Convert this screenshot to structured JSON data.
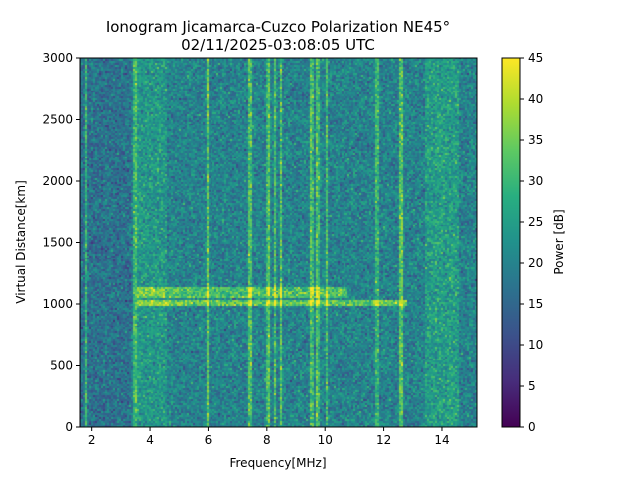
{
  "chart_data": {
    "type": "heatmap",
    "title": "Ionogram Jicamarca-Cuzco Polarization NE45°",
    "subtitle": "02/11/2025-03:08:05 UTC",
    "xlabel": "Frequency[MHz]",
    "ylabel": "Virtual Distance[km]",
    "xlim": [
      1.6,
      15.2
    ],
    "ylim": [
      0,
      3000
    ],
    "xticks": [
      "2",
      "4",
      "6",
      "8",
      "10",
      "12",
      "14"
    ],
    "yticks": [
      "0",
      "500",
      "1000",
      "1500",
      "2000",
      "2500",
      "3000"
    ],
    "colorbar": {
      "label": "Power [dB]",
      "range": [
        0,
        45
      ],
      "ticks": [
        "0",
        "5",
        "10",
        "15",
        "20",
        "25",
        "30",
        "35",
        "40",
        "45"
      ],
      "colormap": "viridis"
    },
    "features": {
      "echo_trace": {
        "freq_start_mhz": 3.6,
        "freq_end_mhz": 12.8,
        "virtual_distance_km": 1000,
        "peak_power_db": 42
      },
      "upper_trace": {
        "freq_start_mhz": 3.6,
        "freq_end_mhz": 10.8,
        "virtual_distance_km": 1090,
        "peak_power_db": 40
      },
      "interference_lines_mhz": [
        1.85,
        3.5,
        6.0,
        7.45,
        8.05,
        8.3,
        8.5,
        9.55,
        9.75,
        10.05,
        11.8,
        12.6
      ],
      "noise_floor_db": 20
    }
  }
}
